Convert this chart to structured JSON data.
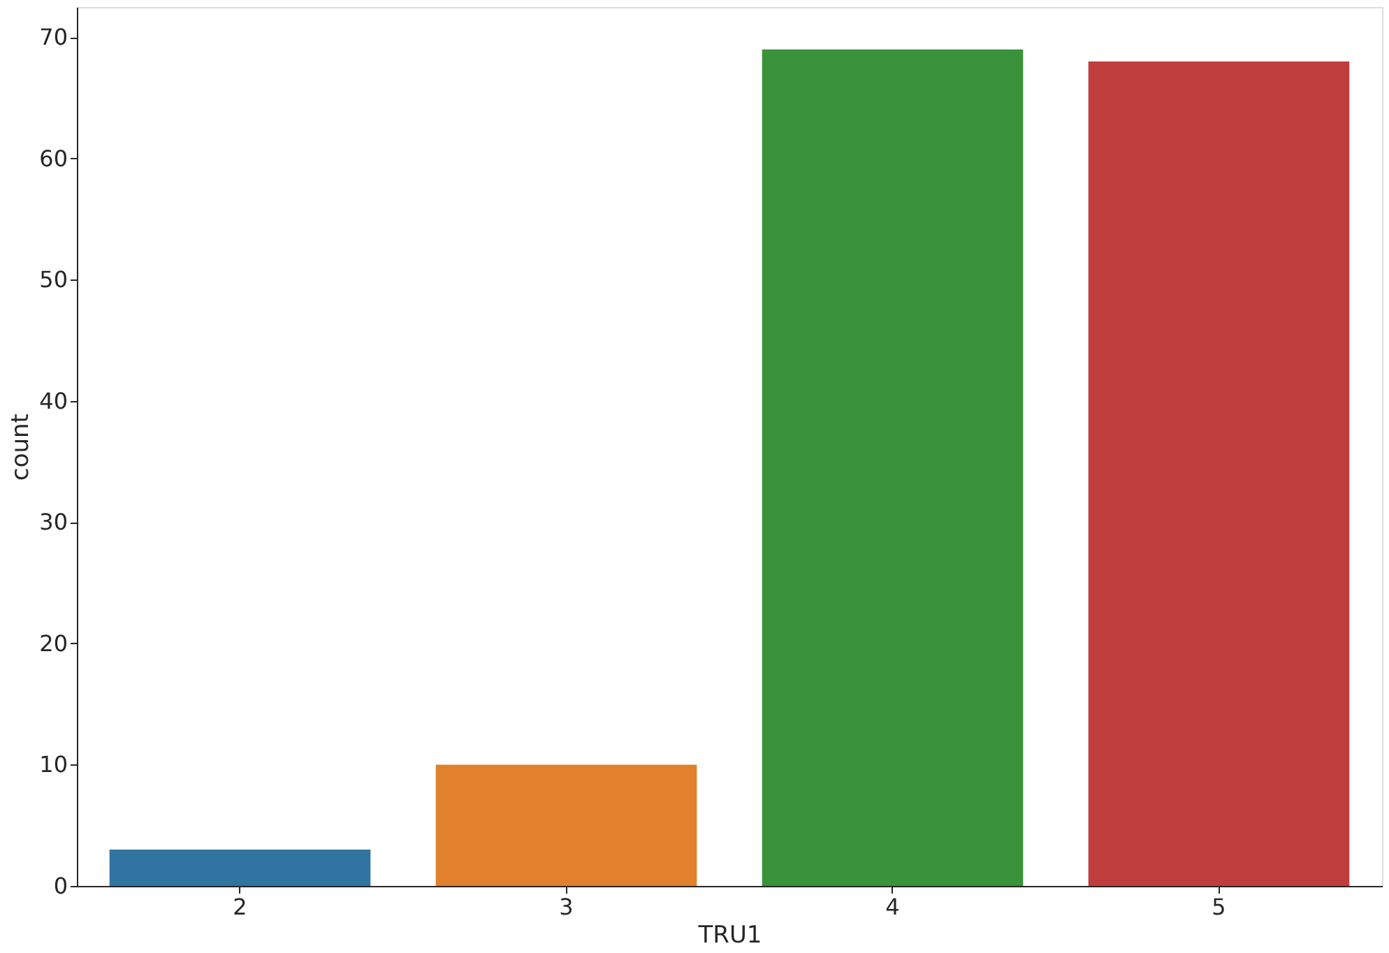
{
  "chart_data": {
    "type": "bar",
    "xlabel": "TRU1",
    "ylabel": "count",
    "categories": [
      "2",
      "3",
      "4",
      "5"
    ],
    "values": [
      3,
      10,
      69,
      68
    ],
    "colors": [
      "#3274a1",
      "#e1812c",
      "#3a923a",
      "#c03d3e"
    ],
    "ylim": [
      0,
      72.5
    ],
    "yticks": [
      0,
      10,
      20,
      30,
      40,
      50,
      60,
      70
    ],
    "grid": false,
    "legend": false
  }
}
